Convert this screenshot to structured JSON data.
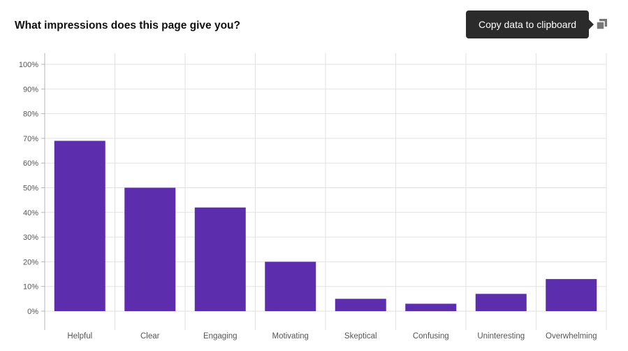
{
  "header": {
    "title": "What impressions does this page give you?",
    "tooltip": "Copy data to clipboard",
    "copy_icon": "copy-icon"
  },
  "colors": {
    "bar": "#5c2dad",
    "grid": "#e2e2e2",
    "axis": "#b5b5b5",
    "label": "#555555",
    "tooltip_bg": "#2b2b2b"
  },
  "chart_data": {
    "type": "bar",
    "title": "What impressions does this page give you?",
    "categories": [
      "Helpful",
      "Clear",
      "Engaging",
      "Motivating",
      "Skeptical",
      "Confusing",
      "Uninteresting",
      "Overwhelming"
    ],
    "values": [
      69,
      50,
      42,
      20,
      5,
      3,
      7,
      13
    ],
    "y_ticks": [
      "0%",
      "10%",
      "20%",
      "30%",
      "40%",
      "50%",
      "60%",
      "70%",
      "80%",
      "90%",
      "100%"
    ],
    "ylim": [
      0,
      100
    ],
    "unit": "%",
    "grid": true,
    "legend": "none"
  }
}
